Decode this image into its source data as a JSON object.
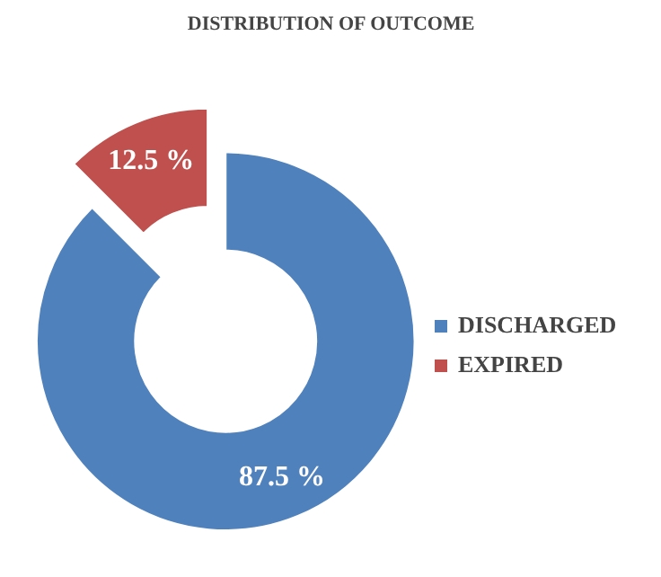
{
  "chart_data": {
    "type": "donut",
    "title": "DISTRIBUTION OF OUTCOME",
    "categories": [
      "DISCHARGED",
      "EXPIRED"
    ],
    "values": [
      87.5,
      12.5
    ],
    "colors": [
      "#4f81bd",
      "#c0504d"
    ],
    "value_labels": [
      "87.5 %",
      "12.5 %"
    ],
    "legend": "right"
  }
}
